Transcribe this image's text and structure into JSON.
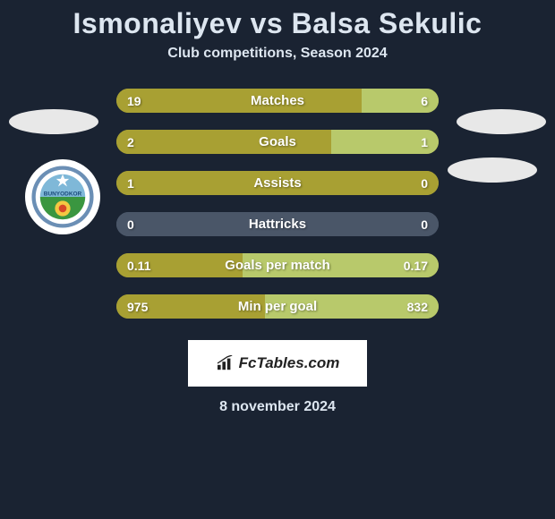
{
  "title": "Ismonaliyev vs Balsa Sekulic",
  "subtitle": "Club competitions, Season 2024",
  "date": "8 november 2024",
  "attribution": "FcTables.com",
  "colors": {
    "background": "#1a2332",
    "player1_bar": "#a8a033",
    "player2_bar": "#b8c96b",
    "neutral_bar": "#4a5668",
    "placeholder": "#e8e8e8",
    "text": "#ffffff",
    "heading": "#dde6f0"
  },
  "bars": [
    {
      "label": "Matches",
      "left_val": "19",
      "right_val": "6",
      "left_pct": 76,
      "right_pct": 24,
      "left_color": "#a8a033",
      "right_color": "#b8c96b"
    },
    {
      "label": "Goals",
      "left_val": "2",
      "right_val": "1",
      "left_pct": 66.7,
      "right_pct": 33.3,
      "left_color": "#a8a033",
      "right_color": "#b8c96b"
    },
    {
      "label": "Assists",
      "left_val": "1",
      "right_val": "0",
      "left_pct": 100,
      "right_pct": 0,
      "left_color": "#a8a033",
      "right_color": "#b8c96b"
    },
    {
      "label": "Hattricks",
      "left_val": "0",
      "right_val": "0",
      "left_pct": 100,
      "right_pct": 0,
      "left_color": "#4a5668",
      "right_color": "#4a5668"
    },
    {
      "label": "Goals per match",
      "left_val": "0.11",
      "right_val": "0.17",
      "left_pct": 39.3,
      "right_pct": 60.7,
      "left_color": "#a8a033",
      "right_color": "#b8c96b"
    },
    {
      "label": "Min per goal",
      "left_val": "975",
      "right_val": "832",
      "left_pct": 46,
      "right_pct": 54,
      "left_color": "#a8a033",
      "right_color": "#b8c96b"
    }
  ],
  "club_logo": {
    "text": "BUNYODKOR",
    "outer_ring": "#6b8fb5",
    "sky": "#7fb8d8",
    "grass": "#3a9640",
    "sun": "#f4c842",
    "ball": "#d84828"
  }
}
